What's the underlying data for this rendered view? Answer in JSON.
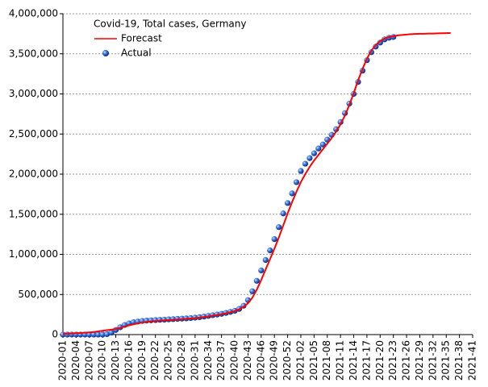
{
  "chart_data": {
    "type": "line",
    "title": "Covid-19, Total cases, Germany",
    "categories": [
      "2020-01",
      null,
      null,
      "2020-04",
      null,
      null,
      "2020-07",
      null,
      null,
      "2020-10",
      null,
      null,
      "2020-13",
      null,
      null,
      "2020-16",
      null,
      null,
      "2020-19",
      null,
      null,
      "2020-22",
      null,
      null,
      "2020-25",
      null,
      null,
      "2020-28",
      null,
      null,
      "2020-31",
      null,
      null,
      "2020-34",
      null,
      null,
      "2020-37",
      null,
      null,
      "2020-40",
      null,
      null,
      "2020-43",
      null,
      null,
      "2020-46",
      null,
      null,
      "2020-49",
      null,
      null,
      "2020-52",
      null,
      null,
      "2021-02",
      null,
      null,
      "2021-05",
      null,
      null,
      "2021-08",
      null,
      null,
      "2021-11",
      null,
      null,
      "2021-14",
      null,
      null,
      "2021-17",
      null,
      null,
      "2021-20",
      null,
      null,
      "2021-23",
      null,
      null,
      "2021-26",
      null,
      null,
      "2021-29",
      null,
      null,
      "2021-32",
      null,
      null,
      "2021-35",
      null,
      null,
      "2021-38",
      null,
      null,
      "2021-41"
    ],
    "series": [
      {
        "name": "Forecast",
        "type": "line",
        "color": "#ff0000",
        "values": [
          10000,
          12000,
          14000,
          17000,
          20000,
          24000,
          28000,
          33000,
          40000,
          48000,
          55000,
          62000,
          70000,
          85000,
          100000,
          115000,
          128000,
          140000,
          150000,
          158000,
          165000,
          170000,
          174000,
          178000,
          181000,
          185000,
          189000,
          193000,
          197000,
          201000,
          206000,
          212000,
          219000,
          227000,
          236000,
          245000,
          255000,
          266000,
          279000,
          295000,
          315000,
          345000,
          390000,
          460000,
          560000,
          680000,
          810000,
          940000,
          1070000,
          1210000,
          1360000,
          1510000,
          1650000,
          1780000,
          1900000,
          2000000,
          2090000,
          2170000,
          2240000,
          2310000,
          2380000,
          2450000,
          2530000,
          2620000,
          2730000,
          2860000,
          3010000,
          3170000,
          3310000,
          3440000,
          3540000,
          3610000,
          3660000,
          3690000,
          3710000,
          3720000,
          3730000,
          3735000,
          3740000,
          3745000,
          3748000,
          3750000,
          3750000,
          3752000,
          3753000,
          3755000,
          3756000,
          3758000,
          3760000,
          null,
          null,
          null,
          null,
          null
        ]
      },
      {
        "name": "Actual",
        "type": "scatter",
        "color": "#1e5fd8",
        "values": [
          0,
          0,
          0,
          0,
          0,
          0,
          0,
          0,
          100,
          1000,
          5000,
          24000,
          58000,
          92000,
          120000,
          140000,
          155000,
          162000,
          170000,
          175000,
          178000,
          181000,
          184000,
          186000,
          190000,
          193000,
          196000,
          199000,
          202000,
          206000,
          211000,
          217000,
          225000,
          233000,
          242000,
          250000,
          259000,
          270000,
          283000,
          297000,
          320000,
          360000,
          430000,
          540000,
          670000,
          800000,
          930000,
          1050000,
          1190000,
          1340000,
          1510000,
          1640000,
          1760000,
          1900000,
          2040000,
          2130000,
          2200000,
          2260000,
          2320000,
          2370000,
          2430000,
          2490000,
          2560000,
          2650000,
          2760000,
          2880000,
          3000000,
          3150000,
          3290000,
          3420000,
          3520000,
          3590000,
          3640000,
          3680000,
          3700000,
          3710000,
          null,
          null,
          null,
          null,
          null,
          null,
          null,
          null,
          null,
          null,
          null,
          null,
          null,
          null,
          null,
          null,
          null,
          null
        ]
      }
    ],
    "ylim": [
      0,
      4000000
    ],
    "yticks": [
      0,
      {
        "value": 500000,
        "label": "500,000"
      },
      {
        "value": 1000000,
        "label": "1,000,000"
      },
      {
        "value": 1500000,
        "label": "1,500,000"
      },
      {
        "value": 2000000,
        "label": "2,000,000"
      },
      {
        "value": 2500000,
        "label": "2,500,000"
      },
      {
        "value": 3000000,
        "label": "3,000,000"
      },
      {
        "value": 3500000,
        "label": "3,500,000"
      },
      {
        "value": 4000000,
        "label": "4,000,000"
      }
    ],
    "grid": true
  }
}
